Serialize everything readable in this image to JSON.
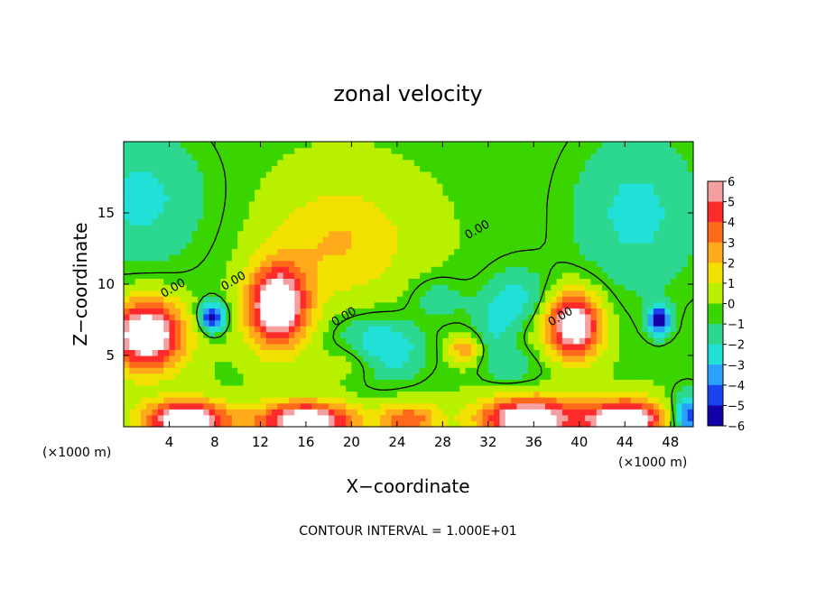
{
  "chart_data": {
    "type": "heatmap",
    "title": "zonal velocity",
    "xlabel": "X−coordinate",
    "ylabel": "Z−coordinate",
    "x_unit_left": "(×1000 m)",
    "x_unit_right": "(×1000 m)",
    "footer": "CONTOUR INTERVAL = 1.000E+01",
    "xlim": [
      0,
      50
    ],
    "ylim": [
      0,
      20
    ],
    "x_ticks": [
      4,
      8,
      12,
      16,
      20,
      24,
      28,
      32,
      36,
      40,
      44,
      48
    ],
    "y_ticks": [
      5,
      10,
      15
    ],
    "colorbar": {
      "levels": [
        6,
        5,
        4,
        3,
        2,
        1,
        0,
        -1,
        -2,
        -3,
        -4,
        -5,
        -6
      ],
      "colors": [
        "#f4a0a0",
        "#ff2a2a",
        "#ff6a1a",
        "#ffaa1a",
        "#f2e000",
        "#b8f000",
        "#3ad400",
        "#2cd890",
        "#20e0d8",
        "#2aa0ff",
        "#1a44f0",
        "#1400a8",
        "#7a1aa8"
      ]
    },
    "contour_labels": [
      {
        "text": "0.00",
        "x": 4.5,
        "z": 9.5
      },
      {
        "text": "0.00",
        "x": 9.8,
        "z": 10.0
      },
      {
        "text": "0.00",
        "x": 19.5,
        "z": 7.5
      },
      {
        "text": "0.00",
        "x": 31.2,
        "z": 13.6
      },
      {
        "text": "0.00",
        "x": 38.5,
        "z": 7.5
      }
    ],
    "field": {
      "background": 0.4,
      "vortices": [
        {
          "x": 2,
          "z": 6.5,
          "amp": 8,
          "sx": 3.2,
          "sz": 2.4
        },
        {
          "x": 13.5,
          "z": 8.5,
          "amp": 8,
          "sx": 2.6,
          "sz": 2.8
        },
        {
          "x": 39.5,
          "z": 7.2,
          "amp": 8,
          "sx": 2.4,
          "sz": 2.3
        },
        {
          "x": 21,
          "z": 4.8,
          "amp": 4.5,
          "sx": 3.2,
          "sz": 1.6
        },
        {
          "x": 35,
          "z": 6.5,
          "amp": 5,
          "sx": 2.5,
          "sz": 2.2
        },
        {
          "x": 7.8,
          "z": 7.7,
          "amp": -6,
          "sx": 1.1,
          "sz": 1.0
        },
        {
          "x": 47,
          "z": 7.5,
          "amp": -6,
          "sx": 1.0,
          "sz": 1.0
        },
        {
          "x": 22,
          "z": 5.2,
          "amp": -6,
          "sx": 3.6,
          "sz": 2.0
        },
        {
          "x": 34.5,
          "z": 6.8,
          "amp": -6,
          "sx": 3.0,
          "sz": 3.2
        },
        {
          "x": 5.5,
          "z": 0.5,
          "amp": 8,
          "sx": 3.6,
          "sz": 1.3
        },
        {
          "x": 16,
          "z": 0.4,
          "amp": 8,
          "sx": 4.2,
          "sz": 1.3
        },
        {
          "x": 35.5,
          "z": 0.6,
          "amp": 8,
          "sx": 4.2,
          "sz": 1.6
        },
        {
          "x": 44,
          "z": 0.5,
          "amp": 8,
          "sx": 3.6,
          "sz": 1.4
        },
        {
          "x": 25,
          "z": 0.5,
          "amp": 4,
          "sx": 2.6,
          "sz": 1.2
        },
        {
          "x": 49.5,
          "z": 0.8,
          "amp": -5,
          "sx": 1.4,
          "sz": 1.6
        },
        {
          "x": 1.5,
          "z": 16,
          "amp": -2.2,
          "sx": 6,
          "sz": 5
        },
        {
          "x": 45,
          "z": 15,
          "amp": -2.2,
          "sx": 6,
          "sz": 6
        },
        {
          "x": 19,
          "z": 13,
          "amp": 2.2,
          "sx": 6,
          "sz": 4
        },
        {
          "x": 30,
          "z": 5.5,
          "amp": 3.5,
          "sx": 1.4,
          "sz": 1.0
        },
        {
          "x": 27.5,
          "z": 9,
          "amp": -1.5,
          "sx": 2.5,
          "sz": 1.5
        }
      ]
    }
  }
}
